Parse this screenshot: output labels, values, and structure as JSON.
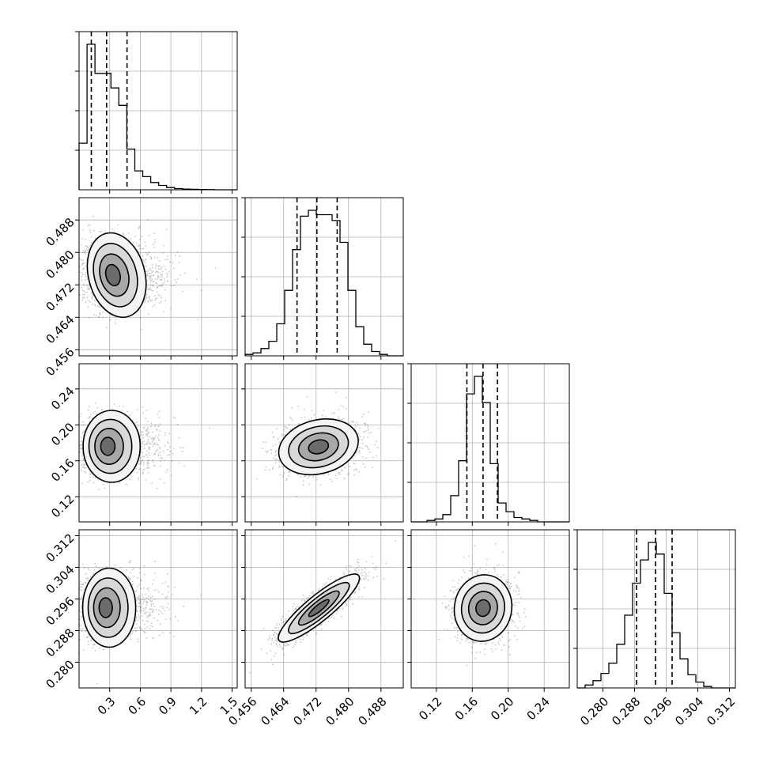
{
  "chart_data": {
    "type": "corner",
    "parameters": 4,
    "grid": true,
    "axis_ranges": [
      [
        0.0,
        1.55
      ],
      [
        0.4545,
        0.4935
      ],
      [
        0.092,
        0.268
      ],
      [
        0.2735,
        0.3135
      ]
    ],
    "ticks": [
      {
        "values": [
          0.3,
          0.6,
          0.9,
          1.2,
          1.5
        ],
        "labels": [
          "0.3",
          "0.6",
          "0.9",
          "1.2",
          "1.5"
        ]
      },
      {
        "values": [
          0.456,
          0.464,
          0.472,
          0.48,
          0.488
        ],
        "labels": [
          "0.456",
          "0.464",
          "0.472",
          "0.480",
          "0.488"
        ]
      },
      {
        "values": [
          0.12,
          0.16,
          0.2,
          0.24
        ],
        "labels": [
          "0.12",
          "0.16",
          "0.20",
          "0.24"
        ]
      },
      {
        "values": [
          0.28,
          0.288,
          0.296,
          0.304,
          0.312
        ],
        "labels": [
          "0.280",
          "0.288",
          "0.296",
          "0.304",
          "0.312"
        ]
      }
    ],
    "marginals": [
      {
        "param": 0,
        "bin_start": 0.0,
        "bin_width": 0.078,
        "counts": [
          0.32,
          1.0,
          0.8,
          0.8,
          0.7,
          0.58,
          0.28,
          0.13,
          0.09,
          0.05,
          0.03,
          0.015,
          0.008,
          0.005,
          0.003,
          0.002,
          0.001,
          0.0,
          0.0,
          0.0
        ],
        "quantiles": [
          0.12,
          0.27,
          0.47
        ]
      },
      {
        "param": 1,
        "bin_start": 0.4545,
        "bin_width": 0.00195,
        "counts": [
          0.01,
          0.02,
          0.05,
          0.1,
          0.22,
          0.45,
          0.73,
          0.96,
          1.0,
          0.97,
          0.97,
          0.93,
          0.78,
          0.45,
          0.2,
          0.08,
          0.03,
          0.01,
          0.0,
          0.0
        ],
        "quantiles": [
          0.4673,
          0.4722,
          0.4772
        ]
      },
      {
        "param": 2,
        "bin_start": 0.092,
        "bin_width": 0.0088,
        "counts": [
          0.0,
          0.0,
          0.01,
          0.02,
          0.05,
          0.18,
          0.42,
          0.88,
          1.0,
          0.82,
          0.4,
          0.13,
          0.07,
          0.03,
          0.02,
          0.01,
          0.0,
          0.0,
          0.0,
          0.0
        ],
        "quantiles": [
          0.154,
          0.172,
          0.188
        ]
      },
      {
        "param": 3,
        "bin_start": 0.2735,
        "bin_width": 0.002,
        "counts": [
          0.0,
          0.02,
          0.05,
          0.1,
          0.17,
          0.3,
          0.5,
          0.72,
          0.88,
          1.0,
          0.92,
          0.65,
          0.38,
          0.2,
          0.09,
          0.04,
          0.01,
          0.0,
          0.0,
          0.0
        ],
        "quantiles": [
          0.2885,
          0.2933,
          0.2975
        ]
      }
    ],
    "pairs": [
      {
        "x": 0,
        "y": 1,
        "mean": [
          0.32,
          0.4744
        ],
        "std": [
          0.14,
          0.0042
        ],
        "rho": -0.1
      },
      {
        "x": 0,
        "y": 2,
        "mean": [
          0.27,
          0.176
        ],
        "std": [
          0.14,
          0.016
        ],
        "rho": 0.0
      },
      {
        "x": 1,
        "y": 2,
        "mean": [
          0.4726,
          0.1755
        ],
        "std": [
          0.0049,
          0.0155
        ],
        "rho": 0.2
      },
      {
        "x": 0,
        "y": 3,
        "mean": [
          0.25,
          0.2938
        ],
        "std": [
          0.13,
          0.004
        ],
        "rho": 0.0
      },
      {
        "x": 1,
        "y": 3,
        "mean": [
          0.4727,
          0.2937
        ],
        "std": [
          0.005,
          0.0043
        ],
        "rho": 0.88
      },
      {
        "x": 2,
        "y": 3,
        "mean": [
          0.172,
          0.2937
        ],
        "std": [
          0.016,
          0.0042
        ],
        "rho": 0.05
      }
    ],
    "contour_levels_sigma": [
      0.5,
      1.0,
      1.5,
      2.0
    ]
  }
}
